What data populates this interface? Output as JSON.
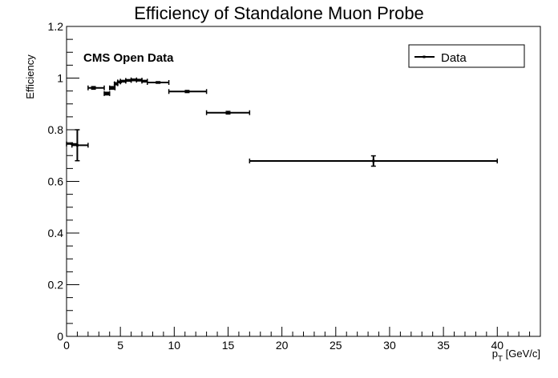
{
  "chart_data": {
    "type": "scatter",
    "title": "Efficiency of Standalone Muon Probe",
    "xlabel_main": "p",
    "xlabel_sub": "T",
    "xlabel_unit": " [GeV/c]",
    "ylabel": "Efficiency",
    "xlim": [
      0,
      44
    ],
    "ylim": [
      0,
      1.2
    ],
    "x_ticks": [
      0,
      5,
      10,
      15,
      20,
      25,
      30,
      35,
      40
    ],
    "y_ticks": [
      0,
      0.2,
      0.4,
      0.6,
      0.8,
      1,
      1.2
    ],
    "annotation": "CMS Open Data",
    "legend": {
      "label": "Data",
      "position": "top-right"
    },
    "series": [
      {
        "name": "Data",
        "points": [
          {
            "x": 0.5,
            "y": 0.745,
            "x_lo": 0.0,
            "x_hi": 1.0,
            "y_err": 0.0
          },
          {
            "x": 1.0,
            "y": 0.74,
            "x_lo": 0.5,
            "x_hi": 2.0,
            "y_err": 0.06
          },
          {
            "x": 2.5,
            "y": 0.962,
            "x_lo": 2.0,
            "x_hi": 3.5,
            "y_err": 0.005
          },
          {
            "x": 3.75,
            "y": 0.94,
            "x_lo": 3.5,
            "x_hi": 4.0,
            "y_err": 0.005
          },
          {
            "x": 4.25,
            "y": 0.962,
            "x_lo": 4.0,
            "x_hi": 4.5,
            "y_err": 0.005
          },
          {
            "x": 4.6,
            "y": 0.978,
            "x_lo": 4.45,
            "x_hi": 4.75,
            "y_err": 0.004
          },
          {
            "x": 4.9,
            "y": 0.985,
            "x_lo": 4.75,
            "x_hi": 5.0,
            "y_err": 0.003
          },
          {
            "x": 5.25,
            "y": 0.988,
            "x_lo": 5.0,
            "x_hi": 5.5,
            "y_err": 0.003
          },
          {
            "x": 5.75,
            "y": 0.991,
            "x_lo": 5.5,
            "x_hi": 6.0,
            "y_err": 0.003
          },
          {
            "x": 6.25,
            "y": 0.993,
            "x_lo": 6.0,
            "x_hi": 6.5,
            "y_err": 0.003
          },
          {
            "x": 6.75,
            "y": 0.992,
            "x_lo": 6.5,
            "x_hi": 7.0,
            "y_err": 0.003
          },
          {
            "x": 7.25,
            "y": 0.988,
            "x_lo": 7.0,
            "x_hi": 7.5,
            "y_err": 0.003
          },
          {
            "x": 8.5,
            "y": 0.983,
            "x_lo": 7.5,
            "x_hi": 9.5,
            "y_err": 0.003
          },
          {
            "x": 11.2,
            "y": 0.948,
            "x_lo": 9.5,
            "x_hi": 13.0,
            "y_err": 0.004
          },
          {
            "x": 15.0,
            "y": 0.866,
            "x_lo": 13.0,
            "x_hi": 17.0,
            "y_err": 0.005
          },
          {
            "x": 28.5,
            "y": 0.679,
            "x_lo": 17.0,
            "x_hi": 40.0,
            "y_err": 0.02
          }
        ]
      }
    ]
  }
}
